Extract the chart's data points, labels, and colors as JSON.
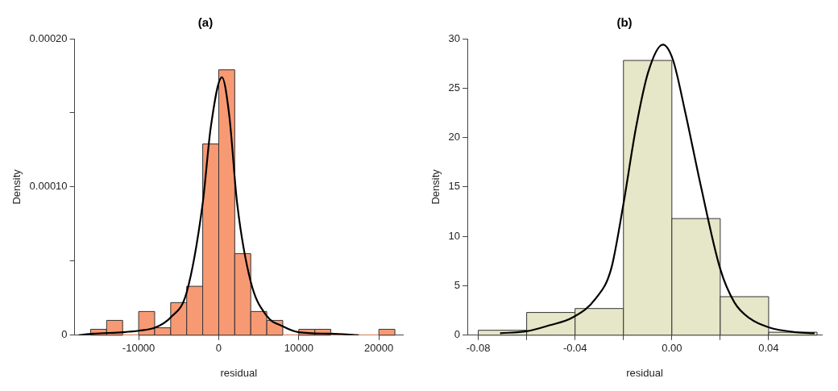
{
  "chart_data": [
    {
      "type": "histogram",
      "title": "(a)",
      "xlabel": "residual",
      "ylabel": "Density",
      "xlim": [
        -18000,
        23000
      ],
      "ylim": [
        0,
        0.0002
      ],
      "xticks": [
        -10000,
        0,
        10000,
        20000
      ],
      "yticks": [
        0,
        {
          "value": 5e-05,
          "label": null
        },
        {
          "value": 0.0001,
          "label": "0.00010"
        },
        {
          "value": 0.00015,
          "label": null
        },
        {
          "value": 0.0002,
          "label": "0.00020"
        }
      ],
      "grid": false,
      "legend": false,
      "series": [
        {
          "color": "#f79a74",
          "bins": [
            -16000,
            -14000,
            -12000,
            -10000,
            -8000,
            -6000,
            -4000,
            -2000,
            0,
            2000,
            4000,
            6000,
            8000,
            10000,
            12000,
            14000,
            16000,
            18000,
            20000,
            22000
          ],
          "values": [
            4e-06,
            1e-05,
            0,
            1.6e-05,
            5e-06,
            2.2e-05,
            3.3e-05,
            0.000129,
            0.000179,
            5.5e-05,
            1.6e-05,
            1e-05,
            0,
            4e-06,
            4e-06,
            0,
            0,
            0,
            4e-06
          ]
        },
        {
          "type": "line",
          "color": "#000000",
          "x": [
            -17500,
            -15700,
            -12000,
            -10000,
            -8000,
            -6000,
            -4000,
            -2000,
            -1000,
            400,
            1300,
            2300,
            4000,
            6000,
            8000,
            10000,
            14000,
            17500
          ],
          "values": [
            0,
            1e-06,
            2e-06,
            3e-06,
            5e-06,
            1.2e-05,
            2.9e-05,
            8.9e-05,
            0.00014,
            0.000174,
            0.000149,
            8.9e-05,
            3.6e-05,
            1.3e-05,
            6e-06,
            2e-06,
            1e-06,
            0
          ]
        }
      ]
    },
    {
      "type": "histogram",
      "title": "(b)",
      "xlabel": "residual",
      "ylabel": "Density",
      "xlim": [
        -0.0845,
        0.062
      ],
      "ylim": [
        0,
        30
      ],
      "xticks": [
        -0.08,
        {
          "value": -0.06,
          "label": null
        },
        -0.04,
        {
          "value": -0.02,
          "label": null
        },
        {
          "value": 0,
          "label": "0.00"
        },
        {
          "value": 0.02,
          "label": null
        },
        0.04
      ],
      "yticks": [
        0,
        5,
        10,
        15,
        20,
        25,
        30
      ],
      "grid": false,
      "legend": false,
      "series": [
        {
          "color": "#e6e6c8",
          "bins": [
            -0.08,
            -0.06,
            -0.04,
            -0.02,
            0,
            0.02,
            0.04,
            0.06
          ],
          "values": [
            0.5,
            2.3,
            2.7,
            27.8,
            11.8,
            3.9,
            0.3
          ]
        },
        {
          "type": "line",
          "color": "#000000",
          "x": [
            -0.071,
            -0.06,
            -0.0506,
            -0.041,
            -0.0315,
            -0.0251,
            -0.02,
            -0.0149,
            -0.0098,
            -0.0037,
            0.0004,
            0.0055,
            0.0118,
            0.02,
            0.0259,
            0.0322,
            0.04,
            0.0513,
            0.059
          ],
          "values": [
            0.2,
            0.4,
            1.0,
            1.8,
            3.7,
            6.7,
            13.3,
            20.9,
            26.6,
            29.4,
            27.9,
            22.6,
            15.3,
            6.7,
            3.3,
            1.7,
            0.8,
            0.3,
            0.2
          ]
        }
      ]
    }
  ]
}
